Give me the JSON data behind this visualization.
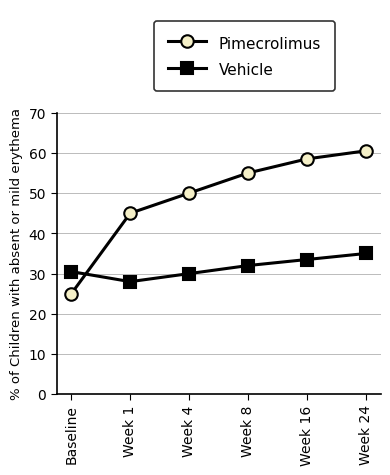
{
  "x_labels": [
    "Baseline",
    "Week 1",
    "Week 4",
    "Week 8",
    "Week 16",
    "Week 24"
  ],
  "pimecrolimus_values": [
    25,
    45,
    50,
    55,
    58.5,
    60.5
  ],
  "vehicle_values": [
    30.5,
    28,
    30,
    32,
    33.5,
    35
  ],
  "pimecrolimus_color": "#000000",
  "vehicle_color": "#000000",
  "pimecrolimus_marker": "o",
  "vehicle_marker": "s",
  "pimecrolimus_markerfacecolor": "#f5f0c8",
  "vehicle_markerfacecolor": "#000000",
  "pimecrolimus_label": "Pimecrolimus",
  "vehicle_label": "Vehicle",
  "ylabel": "% of Children with absent or mild erythema",
  "ylim": [
    0,
    70
  ],
  "yticks": [
    0,
    10,
    20,
    30,
    40,
    50,
    60,
    70
  ],
  "line_width": 2.2,
  "marker_size": 9,
  "legend_fontsize": 11,
  "ylabel_fontsize": 9.5,
  "tick_fontsize": 10,
  "background_color": "#ffffff"
}
